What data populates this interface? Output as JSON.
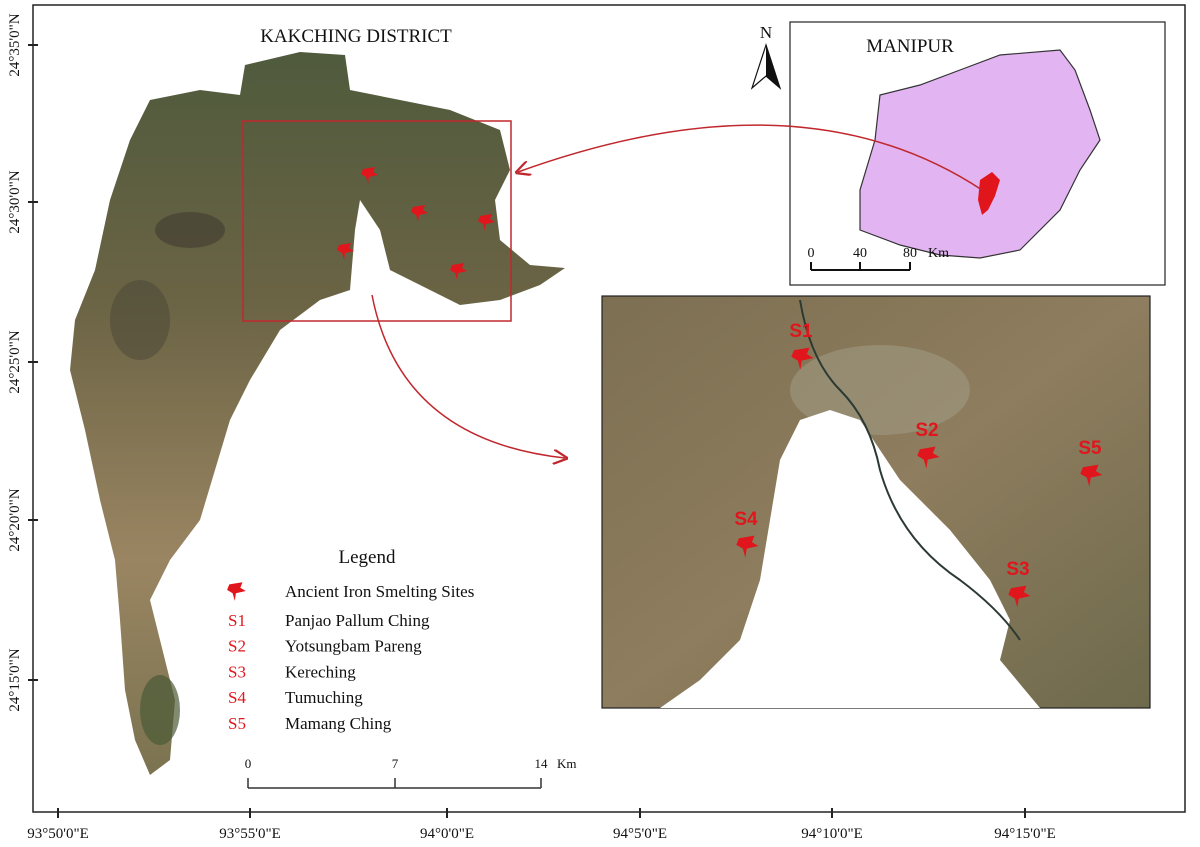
{
  "title": "KAKCHING DISTRICT",
  "inset_map": {
    "title": "MANIPUR",
    "north": "N",
    "scale": {
      "ticks": [
        "0",
        "40",
        "80"
      ],
      "unit": "Km"
    }
  },
  "legend": {
    "title": "Legend",
    "symbol_label": "Ancient Iron Smelting Sites",
    "items": [
      {
        "code": "S1",
        "name": "Panjao Pallum Ching"
      },
      {
        "code": "S2",
        "name": "Yotsungbam Pareng"
      },
      {
        "code": "S3",
        "name": "Kereching"
      },
      {
        "code": "S4",
        "name": "Tumuching"
      },
      {
        "code": "S5",
        "name": "Mamang Ching"
      }
    ]
  },
  "scale": {
    "ticks": [
      "0",
      "7",
      "14"
    ],
    "unit": "Km"
  },
  "zoom_sites": [
    "S1",
    "S2",
    "S5",
    "S4",
    "S3"
  ],
  "lat_labels": [
    "24°35'0\"N",
    "24°30'0\"N",
    "24°25'0\"N",
    "24°20'0\"N",
    "24°15'0\"N"
  ],
  "lon_labels": [
    "93°50'0\"E",
    "93°55'0\"E",
    "94°0'0\"E",
    "94°5'0\"E",
    "94°10'0\"E",
    "94°15'0\"E"
  ]
}
